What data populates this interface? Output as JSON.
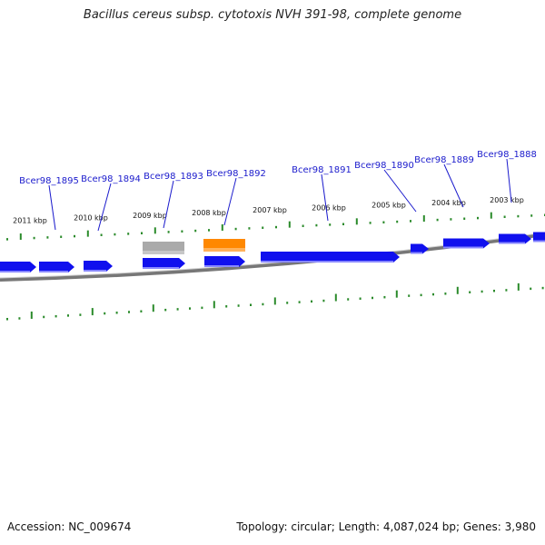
{
  "title": "Bacillus cereus subsp. cytotoxis NVH 391-98, complete genome",
  "footer": {
    "accession": "Accession: NC_009674",
    "summary": "Topology: circular; Length: 4,087,024 bp; Genes: 3,980"
  },
  "colors": {
    "cds": "#1010ee",
    "cds_shade": "#8888ff",
    "rna_grey": "#aaaaaa",
    "rna_orange": "#ff8800",
    "backbone": "#777777",
    "tick": "#2a8a2a",
    "label": "#1a1acc"
  },
  "kbp_labels": [
    "2011 kbp",
    "2010 kbp",
    "2009 kbp",
    "2008 kbp",
    "2007 kbp",
    "2006 kbp",
    "2005 kbp",
    "2004 kbp",
    "2003 kbp"
  ],
  "gene_labels": [
    "Bcer98_1895",
    "Bcer98_1894",
    "Bcer98_1893",
    "Bcer98_1892",
    "Bcer98_1891",
    "Bcer98_1890",
    "Bcer98_1889",
    "Bcer98_1888"
  ]
}
